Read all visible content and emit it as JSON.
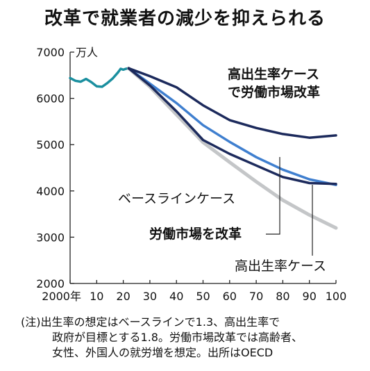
{
  "chart_data": {
    "type": "line",
    "title": "改革で就業者の減少を抑えられる",
    "unit": "万人",
    "ylim": [
      2000,
      7000
    ],
    "yticks": [
      2000,
      3000,
      4000,
      5000,
      6000,
      7000
    ],
    "xlim": [
      2000,
      2100
    ],
    "xticks": [
      {
        "value": 2000,
        "label": "2000年"
      },
      {
        "value": 2010,
        "label": "10"
      },
      {
        "value": 2020,
        "label": "20"
      },
      {
        "value": 2030,
        "label": "30"
      },
      {
        "value": 2040,
        "label": "40"
      },
      {
        "value": 2050,
        "label": "50"
      },
      {
        "value": 2060,
        "label": "60"
      },
      {
        "value": 2070,
        "label": "70"
      },
      {
        "value": 2080,
        "label": "80"
      },
      {
        "value": 2090,
        "label": "90"
      },
      {
        "value": 2100,
        "label": "100"
      }
    ],
    "grid": false,
    "series": [
      {
        "key": "historical",
        "color": "#1a8f9f",
        "x": [
          2000,
          2002,
          2004,
          2006,
          2008,
          2010,
          2012,
          2014,
          2016,
          2018,
          2019,
          2020,
          2021,
          2022
        ],
        "y": [
          6440,
          6380,
          6360,
          6420,
          6350,
          6260,
          6250,
          6330,
          6430,
          6560,
          6640,
          6620,
          6640,
          6650
        ]
      },
      {
        "key": "baseline",
        "name": "ベースラインケース",
        "color": "#c4c6c8",
        "x": [
          2022,
          2030,
          2040,
          2050,
          2060,
          2070,
          2080,
          2090,
          2100
        ],
        "y": [
          6650,
          6250,
          5650,
          5050,
          4620,
          4200,
          3800,
          3480,
          3200
        ]
      },
      {
        "key": "labor",
        "name": "労働市場を改革",
        "color": "#1c2a5c",
        "x": [
          2022,
          2030,
          2040,
          2050,
          2060,
          2070,
          2080,
          2090,
          2100
        ],
        "y": [
          6650,
          6280,
          5720,
          5100,
          4800,
          4550,
          4300,
          4170,
          4150
        ]
      },
      {
        "key": "birth",
        "name": "高出生率ケース",
        "color": "#3f7fcf",
        "x": [
          2022,
          2030,
          2040,
          2050,
          2060,
          2070,
          2080,
          2090,
          2100
        ],
        "y": [
          6650,
          6320,
          5900,
          5420,
          5060,
          4730,
          4460,
          4250,
          4130
        ]
      },
      {
        "key": "both",
        "name": "高出生率ケース で労働市場改革",
        "color": "#1c2a5c",
        "x": [
          2022,
          2030,
          2040,
          2050,
          2060,
          2070,
          2080,
          2090,
          2100
        ],
        "y": [
          6650,
          6480,
          6240,
          5850,
          5530,
          5360,
          5230,
          5150,
          5200
        ]
      }
    ],
    "annotations": [
      {
        "series": "both",
        "lines": [
          "高出生率ケース",
          "で労働市場改革"
        ],
        "bold": true
      },
      {
        "series": "baseline",
        "lines": [
          "ベースラインケース"
        ],
        "bold": false
      },
      {
        "series": "labor",
        "lines": [
          "労働市場を改革"
        ],
        "bold": true
      },
      {
        "series": "birth",
        "lines": [
          "高出生率ケース"
        ],
        "bold": false
      }
    ]
  },
  "footnote": {
    "lines": [
      "(注)出生率の想定はベースラインで1.3、高出生率で",
      "政府が目標とする1.8。労働市場改革では高齢者、",
      "女性、外国人の就労増を想定。出所はOECD"
    ]
  }
}
